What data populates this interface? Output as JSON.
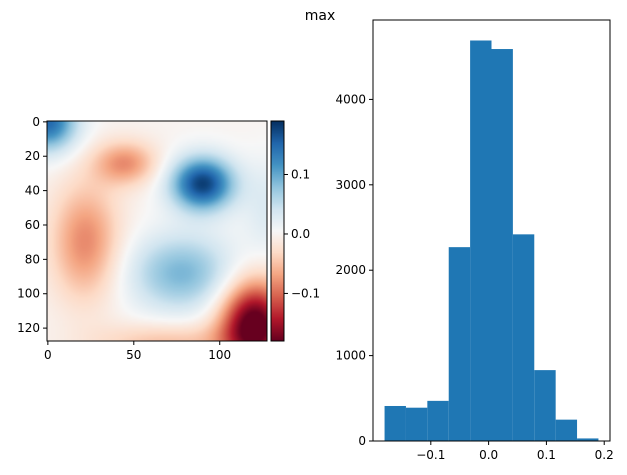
{
  "figure": {
    "title": "max"
  },
  "colors": {
    "bar": "#1f77b4",
    "cmap_low": "#67001f",
    "cmap_mid": "#f7f7f7",
    "cmap_high": "#053061"
  },
  "chart_data": [
    {
      "type": "heatmap",
      "title": "",
      "xlabel": "",
      "ylabel": "",
      "shape": [
        128,
        128
      ],
      "colormap": "RdBu",
      "vlim": [
        -0.18,
        0.19
      ],
      "xticks": [
        0,
        50,
        100
      ],
      "yticks": [
        0,
        20,
        40,
        60,
        80,
        100,
        120
      ],
      "colorbar": {
        "ticks": [
          -0.1,
          0.0,
          0.1
        ],
        "tick_labels": [
          "−0.1",
          "0.0",
          "0.1"
        ]
      },
      "blobs": [
        {
          "x": 0,
          "y": 0,
          "sx": 12,
          "sy": 12,
          "v": 0.15
        },
        {
          "x": 90,
          "y": 36,
          "sx": 13,
          "sy": 11,
          "v": 0.18
        },
        {
          "x": 78,
          "y": 88,
          "sx": 22,
          "sy": 16,
          "v": 0.09
        },
        {
          "x": 45,
          "y": 24,
          "sx": 13,
          "sy": 9,
          "v": -0.08
        },
        {
          "x": 22,
          "y": 70,
          "sx": 14,
          "sy": 24,
          "v": -0.085
        },
        {
          "x": 120,
          "y": 118,
          "sx": 14,
          "sy": 18,
          "v": -0.2
        },
        {
          "x": 70,
          "y": 128,
          "sx": 30,
          "sy": 8,
          "v": -0.05
        },
        {
          "x": 128,
          "y": 50,
          "sx": 10,
          "sy": 20,
          "v": 0.03
        }
      ]
    },
    {
      "type": "bar",
      "subtype": "histogram",
      "title": "",
      "xlabel": "",
      "ylabel": "",
      "bin_edges": [
        -0.18,
        -0.143,
        -0.106,
        -0.069,
        -0.032,
        0.005,
        0.042,
        0.079,
        0.116,
        0.153,
        0.19
      ],
      "values": [
        410,
        390,
        470,
        2270,
        4690,
        4590,
        2420,
        830,
        250,
        30
      ],
      "xlim": [
        -0.2,
        0.21
      ],
      "ylim": [
        0,
        4930
      ],
      "xticks": [
        -0.1,
        0.0,
        0.1,
        0.2
      ],
      "xtick_labels": [
        "−0.1",
        "0.0",
        "0.1",
        "0.2"
      ],
      "yticks": [
        0,
        1000,
        2000,
        3000,
        4000
      ],
      "ytick_labels": [
        "0",
        "1000",
        "2000",
        "3000",
        "4000"
      ]
    }
  ]
}
